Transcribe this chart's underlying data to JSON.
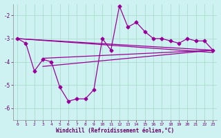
{
  "xlabel": "Windchill (Refroidissement éolien,°C)",
  "xlim": [
    -0.5,
    23.5
  ],
  "ylim": [
    -6.5,
    -1.5
  ],
  "yticks": [
    -6,
    -5,
    -4,
    -3,
    -2
  ],
  "xticks": [
    0,
    1,
    2,
    3,
    4,
    5,
    6,
    7,
    8,
    9,
    10,
    11,
    12,
    13,
    14,
    15,
    16,
    17,
    18,
    19,
    20,
    21,
    22,
    23
  ],
  "background_color": "#cef2f2",
  "line_color": "#990099",
  "grid_color": "#aaddcc",
  "main_series": {
    "x": [
      0,
      1,
      2,
      3,
      4,
      5,
      6,
      7,
      8,
      9,
      10,
      11,
      12,
      13,
      14,
      15,
      16,
      17,
      18,
      19,
      20,
      21,
      22,
      23
    ],
    "y": [
      -3.0,
      -3.2,
      -4.4,
      -3.9,
      -4.0,
      -5.1,
      -5.7,
      -5.6,
      -5.6,
      -5.2,
      -3.0,
      -3.5,
      -1.6,
      -2.5,
      -2.3,
      -2.7,
      -3.0,
      -3.0,
      -3.1,
      -3.2,
      -3.0,
      -3.1,
      -3.1,
      -3.5
    ]
  },
  "trend_lines": [
    {
      "x": [
        0,
        23
      ],
      "y": [
        -3.0,
        -3.5
      ]
    },
    {
      "x": [
        0,
        23
      ],
      "y": [
        -3.0,
        -3.6
      ]
    },
    {
      "x": [
        3,
        23
      ],
      "y": [
        -3.85,
        -3.5
      ]
    },
    {
      "x": [
        3,
        23
      ],
      "y": [
        -4.2,
        -3.5
      ]
    }
  ]
}
